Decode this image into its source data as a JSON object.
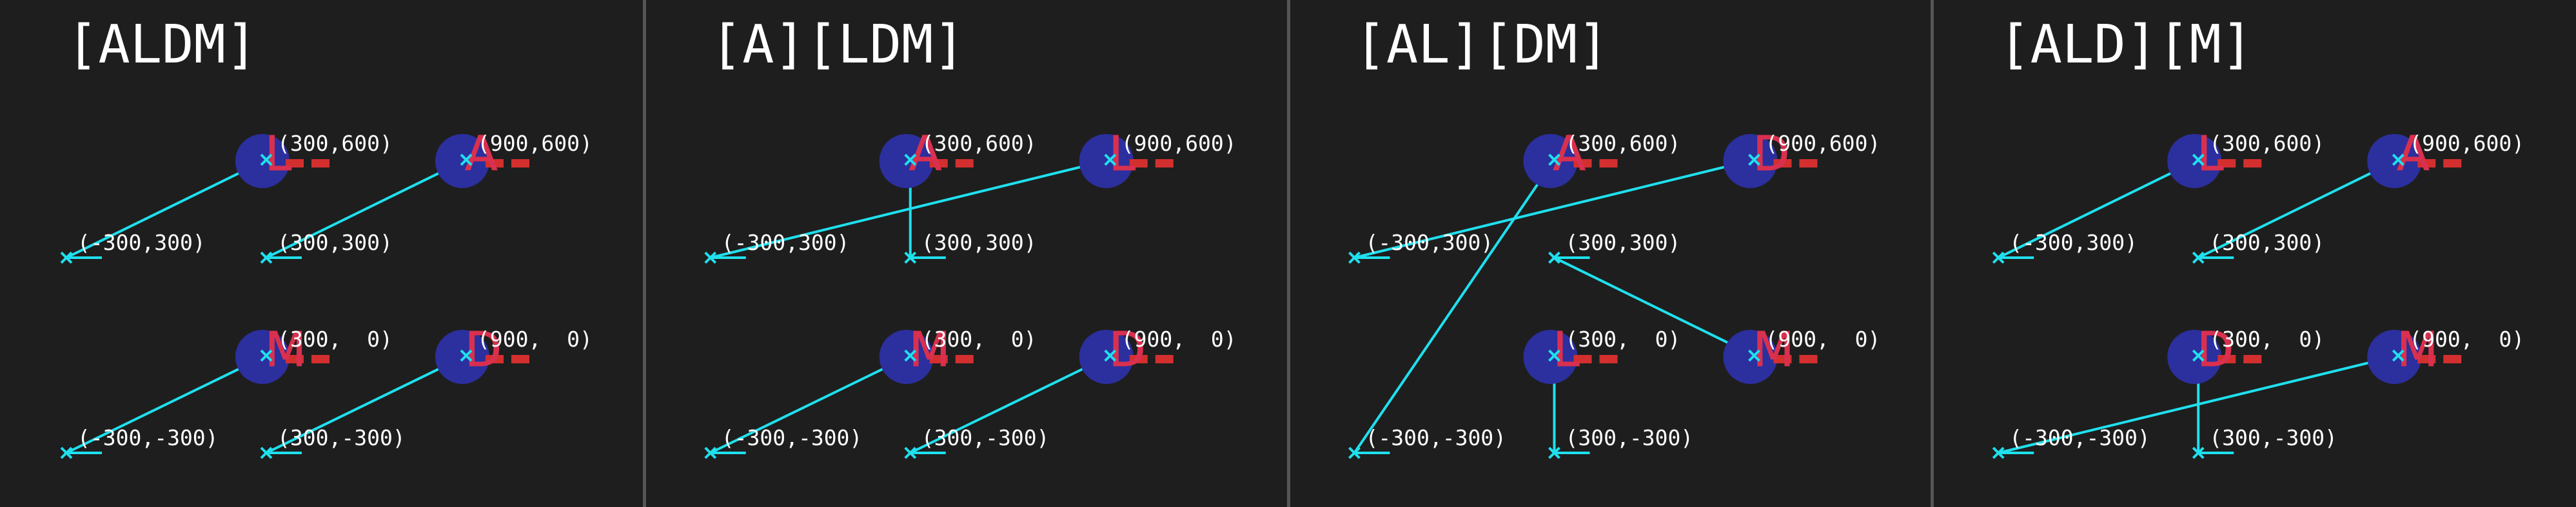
{
  "colors": {
    "background": "#1e1e1e",
    "divider": "#555555",
    "node_circle": "#2c2f9e",
    "glyph": "#d9304f",
    "dash": "#d32f2f",
    "link": "#1fe0ee",
    "text": "#ffffff"
  },
  "panels": [
    {
      "title": "[ALDM]",
      "nodes": [
        {
          "letter": "L",
          "label": "(300,600)"
        },
        {
          "letter": "A",
          "label": "(900,600)"
        },
        {
          "letter": "M",
          "label": "(300,  0)"
        },
        {
          "letter": "D",
          "label": "(900,  0)"
        }
      ],
      "points": [
        {
          "label": "(-300,300)"
        },
        {
          "label": "(300,300)"
        },
        {
          "label": "(-300,-300)"
        },
        {
          "label": "(300,-300)"
        }
      ],
      "links": [
        [
          0,
          0
        ],
        [
          1,
          1
        ],
        [
          2,
          2
        ],
        [
          3,
          3
        ]
      ]
    },
    {
      "title": "[A][LDM]",
      "nodes": [
        {
          "letter": "A",
          "label": "(300,600)"
        },
        {
          "letter": "L",
          "label": "(900,600)"
        },
        {
          "letter": "M",
          "label": "(300,  0)"
        },
        {
          "letter": "D",
          "label": "(900,  0)"
        }
      ],
      "points": [
        {
          "label": "(-300,300)"
        },
        {
          "label": "(300,300)"
        },
        {
          "label": "(-300,-300)"
        },
        {
          "label": "(300,-300)"
        }
      ],
      "links": [
        [
          0,
          1
        ],
        [
          1,
          0
        ],
        [
          2,
          2
        ],
        [
          3,
          3
        ]
      ]
    },
    {
      "title": "[AL][DM]",
      "nodes": [
        {
          "letter": "A",
          "label": "(300,600)"
        },
        {
          "letter": "D",
          "label": "(900,600)"
        },
        {
          "letter": "L",
          "label": "(300,  0)"
        },
        {
          "letter": "M",
          "label": "(900,  0)"
        }
      ],
      "points": [
        {
          "label": "(-300,300)"
        },
        {
          "label": "(300,300)"
        },
        {
          "label": "(-300,-300)"
        },
        {
          "label": "(300,-300)"
        }
      ],
      "links": [
        [
          0,
          1
        ],
        [
          1,
          3
        ],
        [
          2,
          0
        ],
        [
          3,
          2
        ]
      ]
    },
    {
      "title": "[ALD][M]",
      "nodes": [
        {
          "letter": "L",
          "label": "(300,600)"
        },
        {
          "letter": "A",
          "label": "(900,600)"
        },
        {
          "letter": "D",
          "label": "(300,  0)"
        },
        {
          "letter": "M",
          "label": "(900,  0)"
        }
      ],
      "points": [
        {
          "label": "(-300,300)"
        },
        {
          "label": "(300,300)"
        },
        {
          "label": "(-300,-300)"
        },
        {
          "label": "(300,-300)"
        }
      ],
      "links": [
        [
          0,
          0
        ],
        [
          1,
          1
        ],
        [
          2,
          3
        ],
        [
          3,
          2
        ]
      ]
    }
  ]
}
